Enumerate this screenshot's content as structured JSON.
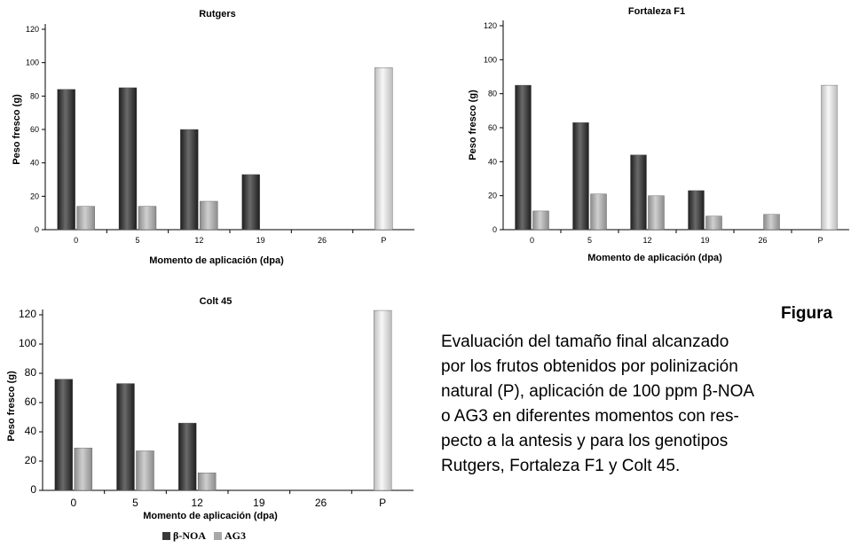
{
  "colors": {
    "beta_noa": "#3a3a3a",
    "ag3": "#a8a8a8",
    "polinizacion": "#dcdcdc"
  },
  "chart_data": [
    {
      "type": "bar",
      "title": "Rutgers",
      "xlabel": "Momento de aplicación (dpa)",
      "ylabel": "Peso fresco (g)",
      "ylim": [
        0,
        120
      ],
      "yticks": [
        "0",
        "20",
        "40",
        "60",
        "80",
        "100",
        "120"
      ],
      "categories": [
        "0",
        "5",
        "12",
        "19",
        "26",
        "P"
      ],
      "series": [
        {
          "name": "β-NOA",
          "values": [
            84,
            85,
            60,
            33,
            null,
            null
          ]
        },
        {
          "name": "AG3",
          "values": [
            14,
            14,
            17,
            null,
            null,
            null
          ]
        },
        {
          "name": "P",
          "values": [
            null,
            null,
            null,
            null,
            null,
            97
          ]
        }
      ]
    },
    {
      "type": "bar",
      "title": "Fortaleza F1",
      "xlabel": "Momento de aplicación (dpa)",
      "ylabel": "Peso fresco (g)",
      "ylim": [
        0,
        120
      ],
      "yticks": [
        "0",
        "20",
        "40",
        "60",
        "80",
        "100",
        "120"
      ],
      "categories": [
        "0",
        "5",
        "12",
        "19",
        "26",
        "P"
      ],
      "series": [
        {
          "name": "β-NOA",
          "values": [
            85,
            63,
            44,
            23,
            null,
            null
          ]
        },
        {
          "name": "AG3",
          "values": [
            11,
            21,
            20,
            8,
            9,
            null
          ]
        },
        {
          "name": "P",
          "values": [
            null,
            null,
            null,
            null,
            null,
            85
          ]
        }
      ]
    },
    {
      "type": "bar",
      "title": "Colt 45",
      "xlabel": "Momento de aplicación (dpa)",
      "ylabel": "Peso fresco (g)",
      "ylim": [
        0,
        120
      ],
      "yticks": [
        "0",
        "20",
        "40",
        "60",
        "80",
        "100",
        "120"
      ],
      "categories": [
        "0",
        "5",
        "12",
        "19",
        "26",
        "P"
      ],
      "series": [
        {
          "name": "β-NOA",
          "values": [
            76,
            73,
            46,
            null,
            null,
            null
          ]
        },
        {
          "name": "AG3",
          "values": [
            29,
            27,
            12,
            null,
            null,
            null
          ]
        },
        {
          "name": "P",
          "values": [
            null,
            null,
            null,
            null,
            null,
            123
          ]
        }
      ]
    }
  ],
  "legend": {
    "items": [
      {
        "label": "β-NOA"
      },
      {
        "label": "AG3"
      }
    ]
  },
  "caption": {
    "title": "Figura",
    "text": "Evaluación del tamaño final alcanzado\npor los frutos obtenidos por polinización\nnatural (P), aplicación de 100 ppm β-NOA\no AG3 en diferentes momentos con res-\npecto a la antesis y para los genotipos\nRutgers, Fortaleza F1 y Colt 45."
  }
}
